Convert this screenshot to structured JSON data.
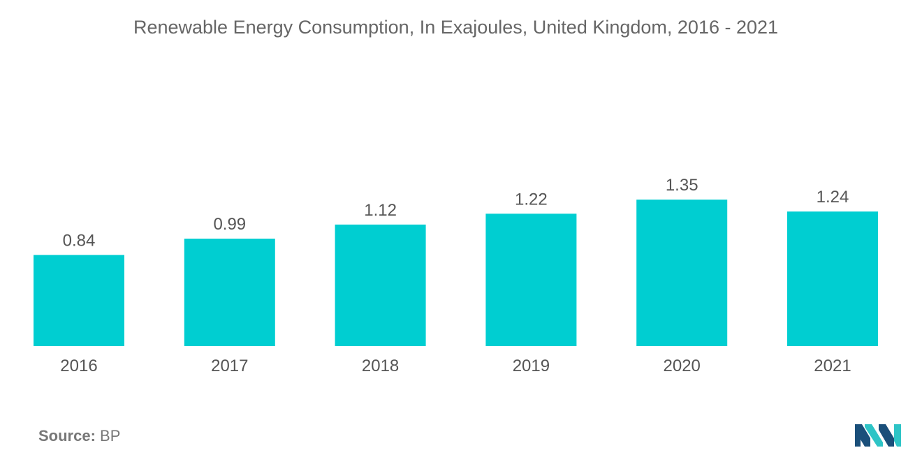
{
  "chart_data": {
    "type": "bar",
    "title": "Renewable Energy Consumption, In Exajoules, United Kingdom, 2016 - 2021",
    "categories": [
      "2016",
      "2017",
      "2018",
      "2019",
      "2020",
      "2021"
    ],
    "values": [
      0.84,
      0.99,
      1.12,
      1.22,
      1.35,
      1.24
    ],
    "data_labels": [
      "0.84",
      "0.99",
      "1.12",
      "1.22",
      "1.35",
      "1.24"
    ],
    "xlabel": "",
    "ylabel": "",
    "grid": false,
    "legend": "none",
    "bar_color": "#00CED1"
  },
  "source": {
    "label": "Source:",
    "value": "BP"
  },
  "logo": {
    "icon": "mordor-intelligence-logo-icon",
    "colors": [
      "#1a4f7a",
      "#2ec4c6"
    ]
  }
}
